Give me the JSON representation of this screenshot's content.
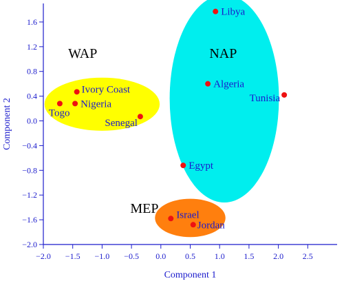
{
  "chart_data": {
    "type": "scatter",
    "xlabel": "Component 1",
    "ylabel": "Component 2",
    "xlim": [
      -2.0,
      3.0
    ],
    "ylim": [
      -2.0,
      1.9
    ],
    "xticks": [
      -2.0,
      -1.5,
      -1.0,
      -0.5,
      0.0,
      0.5,
      1.0,
      1.5,
      2.0,
      2.5
    ],
    "xtick_labels": [
      "−2.0",
      "−1.5",
      "−1.0",
      "−0.5",
      "0.0",
      "0.5",
      "1.0",
      "1.5",
      "2.0",
      "2.5"
    ],
    "yticks": [
      -2.0,
      -1.6,
      -1.2,
      -0.8,
      -0.4,
      0.0,
      0.4,
      0.8,
      1.2,
      1.6
    ],
    "ytick_labels": [
      "−2.0",
      "−1.6",
      "−1.2",
      "−0.8",
      "−0.4",
      "0.0",
      "0.4",
      "0.8",
      "1.2",
      "1.6"
    ],
    "grid": false,
    "point_color": "#ee1111",
    "points": [
      {
        "label": "Libya",
        "x": 0.93,
        "y": 1.77
      },
      {
        "label": "Algeria",
        "x": 0.8,
        "y": 0.6
      },
      {
        "label": "Tunisia",
        "x": 2.1,
        "y": 0.42
      },
      {
        "label": "Egypt",
        "x": 0.38,
        "y": -0.72
      },
      {
        "label": "Ivory Coast",
        "x": -1.43,
        "y": 0.47
      },
      {
        "label": "Nigeria",
        "x": -1.46,
        "y": 0.28
      },
      {
        "label": "Togo",
        "x": -1.72,
        "y": 0.28
      },
      {
        "label": "Senegal",
        "x": -0.35,
        "y": 0.07
      },
      {
        "label": "Israel",
        "x": 0.17,
        "y": -1.58
      },
      {
        "label": "Jordan",
        "x": 0.55,
        "y": -1.68
      }
    ],
    "groups": [
      {
        "label": "WAP",
        "color": "#ffff00",
        "cx": -1.0,
        "cy": 0.27,
        "rx": 0.98,
        "ry": 0.43,
        "angle": 0,
        "label_x": -1.33,
        "label_y": 1.02
      },
      {
        "label": "NAP",
        "color": "#00eeee",
        "cx": 1.08,
        "cy": 0.36,
        "rx": 0.93,
        "ry": 1.68,
        "angle": 0,
        "label_x": 1.06,
        "label_y": 1.02
      },
      {
        "label": "MEP",
        "color": "#ff7f0e",
        "cx": 0.5,
        "cy": -1.57,
        "rx": 0.6,
        "ry": 0.31,
        "angle": 0,
        "label_x": -0.28,
        "label_y": -1.49
      }
    ]
  }
}
